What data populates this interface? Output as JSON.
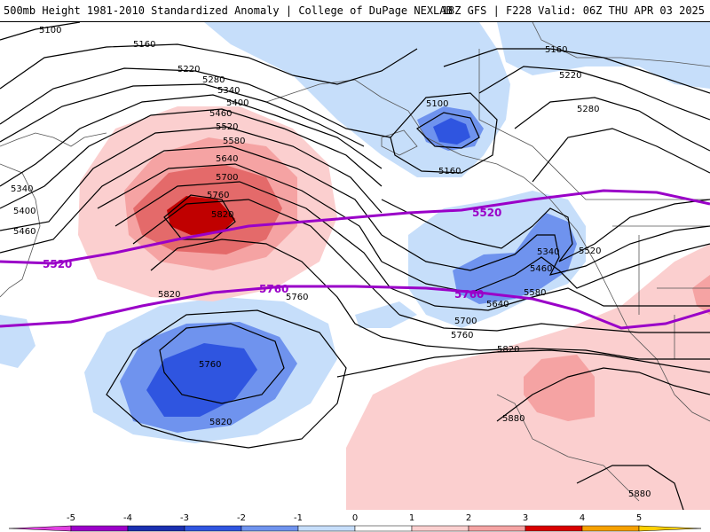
{
  "header": {
    "title_left": "500mb Height 1981-2010 Standardized Anomaly | College of DuPage NEXLAB",
    "title_right": "18Z GFS | F228 Valid: 06Z THU APR 03 2025"
  },
  "map": {
    "contour_labels": [
      {
        "id": "c1",
        "text": "5100"
      },
      {
        "id": "c2",
        "text": "5160"
      },
      {
        "id": "c3",
        "text": "5220"
      },
      {
        "id": "c4",
        "text": "5280"
      },
      {
        "id": "c5",
        "text": "5340"
      },
      {
        "id": "c6",
        "text": "5400"
      },
      {
        "id": "c7",
        "text": "5460"
      },
      {
        "id": "c8",
        "text": "5520"
      },
      {
        "id": "c9",
        "text": "5580"
      },
      {
        "id": "c10",
        "text": "5640"
      },
      {
        "id": "c11",
        "text": "5700"
      },
      {
        "id": "c12",
        "text": "5760"
      },
      {
        "id": "c13",
        "text": "5820"
      },
      {
        "id": "c14",
        "text": "5340"
      },
      {
        "id": "c15",
        "text": "5400"
      },
      {
        "id": "c16",
        "text": "5460"
      },
      {
        "id": "c17",
        "text": "5820"
      },
      {
        "id": "c18",
        "text": "5760"
      },
      {
        "id": "c19",
        "text": "5760"
      },
      {
        "id": "c20",
        "text": "5820"
      },
      {
        "id": "c21",
        "text": "5100"
      },
      {
        "id": "c22",
        "text": "5160"
      },
      {
        "id": "c23",
        "text": "5160"
      },
      {
        "id": "c24",
        "text": "5220"
      },
      {
        "id": "c25",
        "text": "5280"
      },
      {
        "id": "c26",
        "text": "5340"
      },
      {
        "id": "c27",
        "text": "5520"
      },
      {
        "id": "c28",
        "text": "5460"
      },
      {
        "id": "c29",
        "text": "5580"
      },
      {
        "id": "c30",
        "text": "5640"
      },
      {
        "id": "c31",
        "text": "5700"
      },
      {
        "id": "c32",
        "text": "5760"
      },
      {
        "id": "c33",
        "text": "5820"
      },
      {
        "id": "c34",
        "text": "5880"
      },
      {
        "id": "c35",
        "text": "5880"
      }
    ],
    "thick_contour_labels": [
      {
        "id": "t1",
        "text": "5520"
      },
      {
        "id": "t2",
        "text": "5520"
      },
      {
        "id": "t3",
        "text": "5760"
      },
      {
        "id": "t4",
        "text": "5760"
      }
    ],
    "thick_contour_color": "#9a00c8",
    "contour_color": "#000000"
  },
  "legend": {
    "ticks": [
      "-5",
      "-4",
      "-3",
      "-2",
      "-1",
      "0",
      "1",
      "2",
      "3",
      "4",
      "5"
    ],
    "colors": [
      "#9b00c8",
      "#1a2fb0",
      "#2f55e0",
      "#6f93ee",
      "#c6defa",
      "#ffffff",
      "#fbcfcf",
      "#f5a3a3",
      "#d80000",
      "#f5a000"
    ],
    "left_end_color": "#e040e0",
    "right_end_color": "#ffd000"
  }
}
